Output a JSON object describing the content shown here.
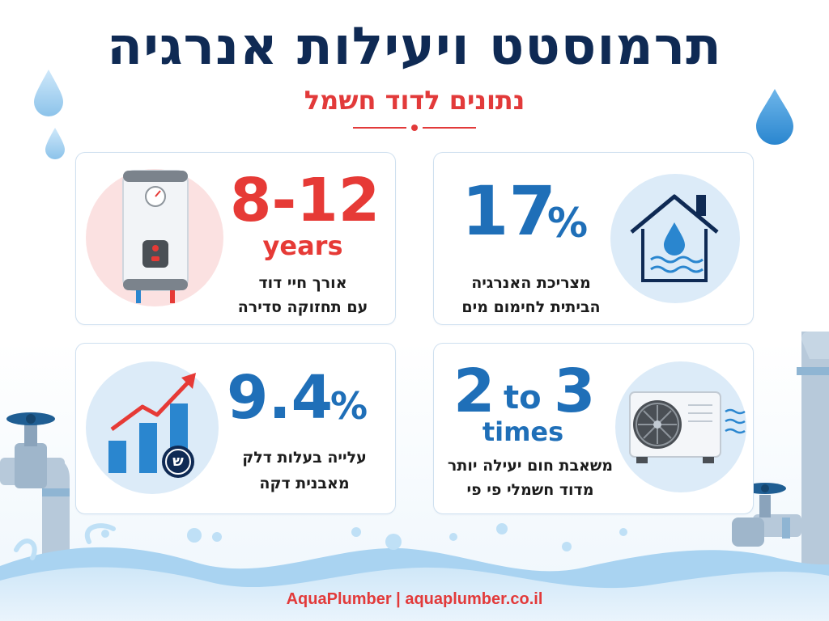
{
  "title": "תרמוסטט ויעילות אנרגיה",
  "subtitle": "נתונים לדוד חשמל",
  "cards": [
    {
      "value": "8-12",
      "unit": "years",
      "line1": "אורך חיי דוד",
      "line2": "עם תחזוקה סדירה",
      "icon": "water-heater-icon",
      "accent": "#e63a36"
    },
    {
      "value": "17",
      "unit": "%",
      "line1": "מצריכת האנרגיה",
      "line2": "הביתית לחימום מים",
      "icon": "house-water-icon",
      "accent": "#1f6fb8"
    },
    {
      "value": "9.4",
      "unit": "%",
      "line1": "עלייה בעלות דלק",
      "line2": "מאבנית דקה",
      "icon": "rising-chart-icon",
      "accent": "#1f6fb8",
      "currency_symbol": "ש"
    },
    {
      "value_a": "2",
      "value_connector": "to",
      "value_b": "3",
      "unit": "times",
      "line1": "משאבת חום יעילה יותר",
      "line2": "מדוד חשמלי פי פי",
      "icon": "heat-pump-icon",
      "accent": "#1f6fb8"
    }
  ],
  "footer": "AquaPlumber | aquaplumber.co.il",
  "colors": {
    "navy": "#0f2a54",
    "red": "#e63a36",
    "blue": "#1f6fb8",
    "water": "#bfe0f6"
  }
}
